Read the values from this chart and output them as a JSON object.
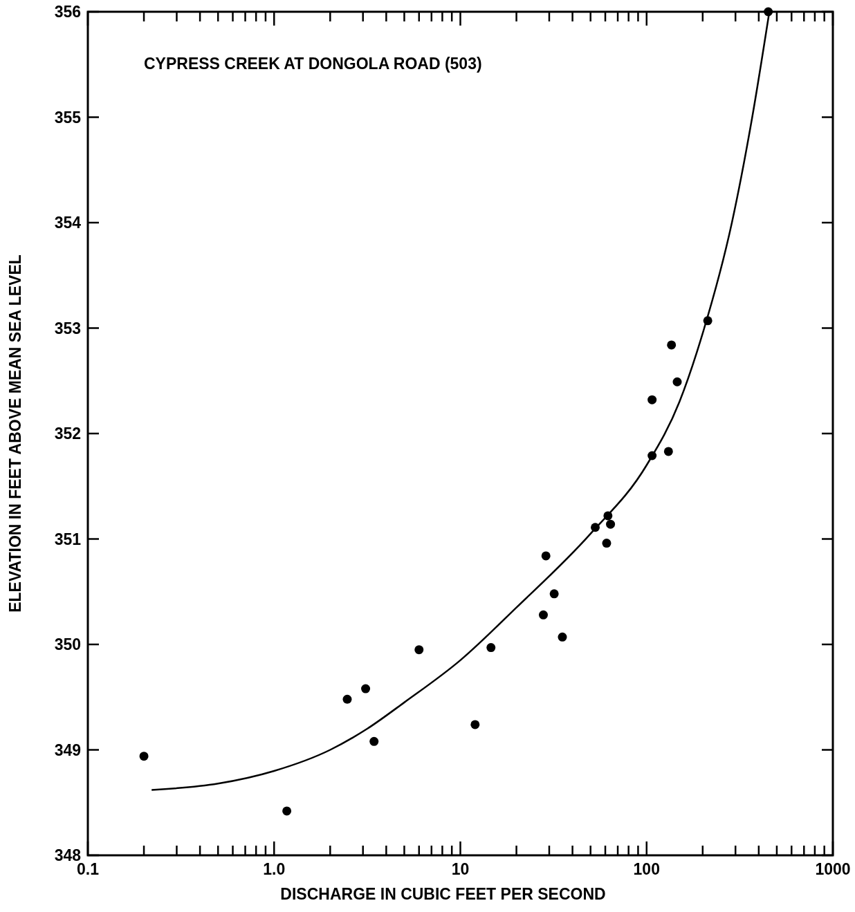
{
  "chart_data": {
    "type": "scatter",
    "title": "CYPRESS CREEK AT DONGOLA ROAD (503)",
    "xlabel": "DISCHARGE IN CUBIC FEET PER SECOND",
    "ylabel": "ELEVATION IN FEET ABOVE MEAN SEA LEVEL",
    "log": "x",
    "grid": false,
    "xlim": [
      0.1,
      1000
    ],
    "ylim": [
      348,
      356
    ],
    "xticks": [
      {
        "value": 0.1,
        "label": "0.1"
      },
      {
        "value": 0.2,
        "label": null
      },
      {
        "value": 0.3,
        "label": null
      },
      {
        "value": 0.4,
        "label": null
      },
      {
        "value": 0.5,
        "label": null
      },
      {
        "value": 0.6,
        "label": null
      },
      {
        "value": 0.7,
        "label": null
      },
      {
        "value": 0.8,
        "label": null
      },
      {
        "value": 0.9,
        "label": null
      },
      {
        "value": 1,
        "label": "1.0"
      },
      {
        "value": 2,
        "label": null
      },
      {
        "value": 3,
        "label": null
      },
      {
        "value": 4,
        "label": null
      },
      {
        "value": 5,
        "label": null
      },
      {
        "value": 6,
        "label": null
      },
      {
        "value": 7,
        "label": null
      },
      {
        "value": 8,
        "label": null
      },
      {
        "value": 9,
        "label": null
      },
      10,
      {
        "value": 20,
        "label": null
      },
      {
        "value": 30,
        "label": null
      },
      {
        "value": 40,
        "label": null
      },
      {
        "value": 50,
        "label": null
      },
      {
        "value": 60,
        "label": null
      },
      {
        "value": 70,
        "label": null
      },
      {
        "value": 80,
        "label": null
      },
      {
        "value": 90,
        "label": null
      },
      100,
      {
        "value": 200,
        "label": null
      },
      {
        "value": 300,
        "label": null
      },
      {
        "value": 400,
        "label": null
      },
      {
        "value": 500,
        "label": null
      },
      {
        "value": 600,
        "label": null
      },
      {
        "value": 700,
        "label": null
      },
      {
        "value": 800,
        "label": null
      },
      {
        "value": 900,
        "label": null
      },
      1000
    ],
    "yticks": [
      348,
      349,
      350,
      351,
      352,
      353,
      354,
      355,
      356
    ],
    "series": [
      {
        "type": "scatter",
        "color": "#000000",
        "marker": "circle",
        "x": [
          0.2,
          1.17,
          2.47,
          3.1,
          3.44,
          6.0,
          12.0,
          14.6,
          27.9,
          28.8,
          31.9,
          35.3,
          53,
          61,
          62,
          64,
          107,
          107,
          131,
          136,
          146,
          213,
          450
        ],
        "values": [
          348.94,
          348.42,
          349.48,
          349.58,
          349.08,
          349.95,
          349.24,
          349.97,
          350.28,
          350.84,
          350.48,
          350.07,
          351.11,
          350.96,
          351.22,
          351.14,
          352.32,
          351.79,
          351.83,
          352.84,
          352.49,
          353.07,
          356
        ]
      },
      {
        "type": "line",
        "color": "#000000",
        "marker": "none",
        "line_style": "solid",
        "x": [
          0.22,
          0.5,
          1,
          2,
          3.16,
          5,
          10,
          20,
          50,
          100,
          150,
          200,
          287,
          369,
          456
        ],
        "values": [
          348.62,
          348.68,
          348.8,
          349.0,
          349.2,
          349.45,
          349.85,
          350.35,
          351.05,
          351.7,
          352.3,
          352.95,
          354,
          355,
          356
        ]
      }
    ]
  }
}
